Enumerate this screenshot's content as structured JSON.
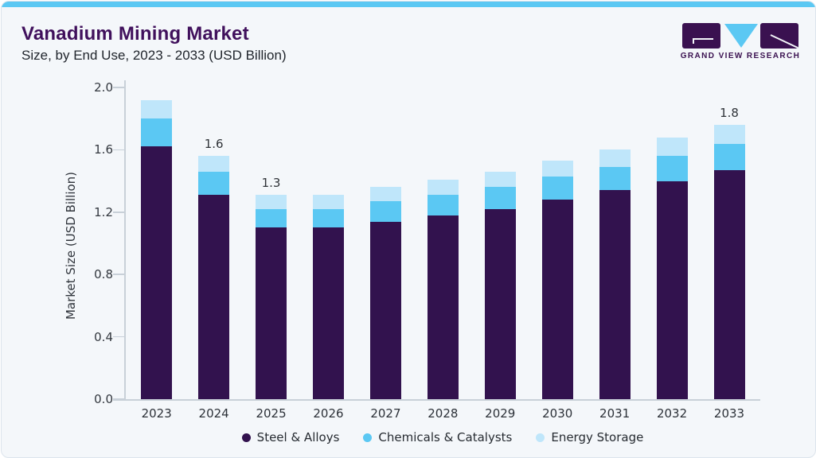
{
  "header": {
    "title": "Vanadium Mining Market",
    "subtitle": "Size, by End Use, 2023 - 2033 (USD Billion)"
  },
  "logo": {
    "text": "GRAND VIEW RESEARCH"
  },
  "colors": {
    "accent_strip": "#5BC8F3",
    "steel": "#32124E",
    "chemicals": "#5BC8F3",
    "energy": "#BFE6FA",
    "title_purple": "#40105C",
    "card_bg": "#F4F7FA",
    "card_border": "#DCE4EC",
    "axis_line": "#C8D0D8"
  },
  "chart_data": {
    "type": "bar",
    "stacked": true,
    "title": "Vanadium Mining Market Size, by End Use, 2023 - 2033 (USD Billion)",
    "xlabel": "",
    "ylabel": "Market Size (USD Billion)",
    "ylim": [
      0.0,
      2.0
    ],
    "yticks": [
      "0.0",
      "0.4",
      "0.8",
      "1.2",
      "1.6",
      "2.0"
    ],
    "grid": false,
    "legend_position": "bottom",
    "categories": [
      "2023",
      "2024",
      "2025",
      "2026",
      "2027",
      "2028",
      "2029",
      "2030",
      "2031",
      "2032",
      "2033"
    ],
    "series": [
      {
        "name": "Steel & Alloys",
        "color": "#32124E",
        "values": [
          1.62,
          1.31,
          1.1,
          1.1,
          1.14,
          1.18,
          1.22,
          1.28,
          1.34,
          1.4,
          1.47
        ]
      },
      {
        "name": "Chemicals & Catalysts",
        "color": "#5BC8F3",
        "values": [
          0.18,
          0.15,
          0.12,
          0.12,
          0.13,
          0.13,
          0.14,
          0.15,
          0.15,
          0.16,
          0.17
        ]
      },
      {
        "name": "Energy Storage",
        "color": "#BFE6FA",
        "values": [
          0.12,
          0.1,
          0.09,
          0.09,
          0.09,
          0.1,
          0.1,
          0.1,
          0.11,
          0.12,
          0.12
        ]
      }
    ],
    "totals": [
      1.92,
      1.56,
      1.31,
      1.31,
      1.36,
      1.41,
      1.46,
      1.53,
      1.6,
      1.68,
      1.76
    ],
    "bar_value_labels": {
      "2024": "1.6",
      "2025": "1.3",
      "2033": "1.8"
    }
  }
}
